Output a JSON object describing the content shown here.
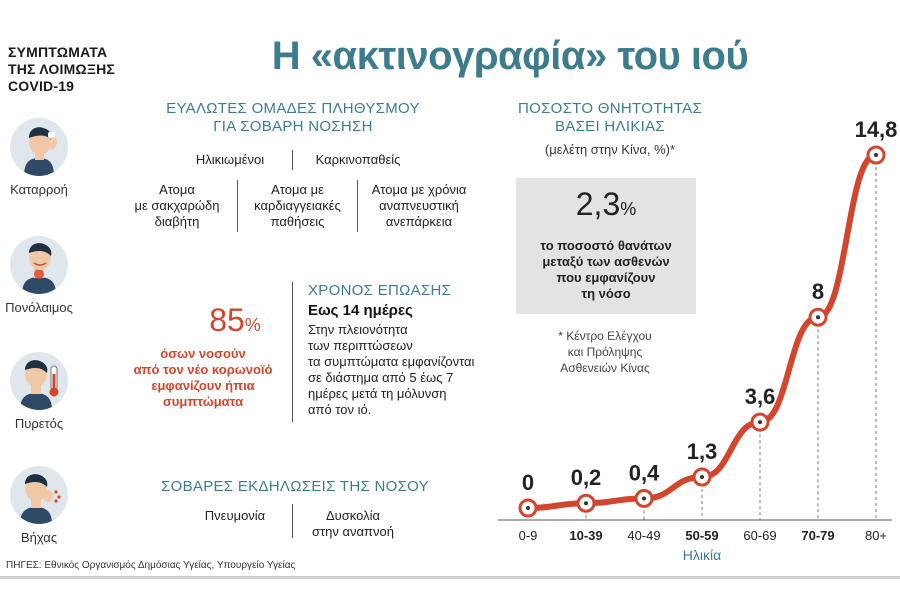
{
  "title": "Η «ακτινογραφία» του ιού",
  "symptoms": {
    "heading": [
      "ΣΥΜΠΤΩΜΑΤΑ",
      "ΤΗΣ ΛΟΙΜΩΞΗΣ",
      "COVID-19"
    ],
    "items": [
      "Καταρροή",
      "Πονόλαιμος",
      "Πυρετός",
      "Βήχας"
    ]
  },
  "vulnerable": {
    "title": [
      "ΕΥΑΛΩΤΕΣ ΟΜΑΔΕΣ ΠΛΗΘΥΣΜΟΥ",
      "ΓΙΑ ΣΟΒΑΡΗ ΝΟΣΗΣΗ"
    ],
    "row1": [
      "Ηλικιωμένοι",
      "Καρκινοπαθείς"
    ],
    "row2": [
      [
        "Ατομα",
        "με σακχαρώδη",
        "διαβήτη"
      ],
      [
        "Ατομα με",
        "καρδιαγγειακές",
        "παθήσεις"
      ],
      [
        "Ατομα με χρόνια",
        "αναπνευστική",
        "ανεπάρκεια"
      ]
    ]
  },
  "mild": {
    "value": "85",
    "unit": "%",
    "text": [
      "όσων νοσούν",
      "από τον νέο κορωνοϊό",
      "εμφανίζουν ήπια",
      "συμπτώματα"
    ]
  },
  "incubation": {
    "title": "ΧΡΟΝΟΣ ΕΠΩΑΣΗΣ",
    "highlight": "Εως 14 ημέρες",
    "text": [
      "Στην πλειονότητα",
      "των περιπτώσεων",
      "τα συμπτώματα εμφανίζονται",
      "σε διάστημα από 5 έως 7",
      "ημέρες μετά τη μόλυνση",
      "από τον ιό."
    ]
  },
  "severe": {
    "title": "ΣΟΒΑΡΕΣ ΕΚΔΗΛΩΣΕΙΣ ΤΗΣ ΝΟΣΟΥ",
    "items": [
      [
        "Πνευμονία"
      ],
      [
        "Δυσκολία",
        "στην αναπνοή"
      ]
    ]
  },
  "mortality_box": {
    "value": "2,3",
    "unit": "%",
    "text": [
      "το ποσοστό θανάτων",
      "μεταξύ των ασθενών",
      "που εμφανίζουν",
      "τη νόσο"
    ]
  },
  "footnote": [
    "* Κέντρο Ελέγχου",
    "και Πρόληψης",
    "Ασθενειών Κίνας"
  ],
  "source": "ΠΗΓΕΣ: Εθνικός Οργανισμός Δημόσιας Υγείας, Υπουργείο Υγείας",
  "colors": {
    "accent": "#d2462e",
    "teal": "#3d7c8d",
    "box": "#e3e3e3"
  },
  "chart_data": {
    "type": "line",
    "title": [
      "ΠΟΣΟΣΤΟ ΘΝΗΤΟΤΗΤΑΣ",
      "ΒΑΣΕΙ ΗΛΙΚΙΑΣ"
    ],
    "subtitle": "(μελέτη στην Κίνα, %)*",
    "xlabel": "Ηλικία",
    "ylabel": "",
    "categories": [
      "0-9",
      "10-39",
      "40-49",
      "50-59",
      "60-69",
      "70-79",
      "80+"
    ],
    "values": [
      0,
      0.2,
      0.4,
      1.3,
      3.6,
      8,
      14.8
    ],
    "value_labels": [
      "0",
      "0,2",
      "0,4",
      "1,3",
      "3,6",
      "8",
      "14,8"
    ],
    "bold_categories": [
      false,
      true,
      false,
      true,
      false,
      true,
      false
    ],
    "ylim": [
      0,
      14.8
    ],
    "grid": false,
    "legend": "none"
  }
}
